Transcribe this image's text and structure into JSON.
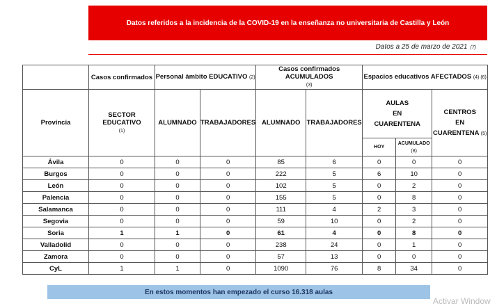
{
  "banner": {
    "title": "Datos referidos a la incidencia de la COVID-19 en la enseñanza no universitaria de Castilla y León"
  },
  "date": {
    "text": "Datos a 25 de marzo de 2021",
    "note": "(7)"
  },
  "table": {
    "group_headers": [
      {
        "label": "Casos confirmados"
      },
      {
        "label": "Personal ámbito EDUCATIVO",
        "note": "(2)"
      },
      {
        "label": "Casos confirmados ACUMULADOS",
        "note": "(3)"
      },
      {
        "label": "Espacios educativos AFECTADOS",
        "note": "(4) (6)"
      }
    ],
    "provincia": "Provincia",
    "sector": {
      "label": "SECTOR EDUCATIVO",
      "note": "(1)"
    },
    "alumnado_1": "ALUMNADO",
    "trabajadores_1": "TRABAJADORES",
    "alumnado_2": "ALUMNADO",
    "trabajadores_2": "TRABAJADORES",
    "aulas": [
      "AULAS",
      "EN",
      "CUARENTENA"
    ],
    "hoy": "HOY",
    "acumulado": {
      "label": "ACUMULADO",
      "note": "(8)"
    },
    "centros": {
      "lines": [
        "CENTROS",
        "EN"
      ],
      "last": "CUARENTENA",
      "note": "(5)"
    },
    "rows": [
      [
        "Ávila",
        0,
        0,
        0,
        85,
        6,
        0,
        0,
        0
      ],
      [
        "Burgos",
        0,
        0,
        0,
        222,
        5,
        6,
        10,
        0
      ],
      [
        "León",
        0,
        0,
        0,
        102,
        5,
        0,
        2,
        0
      ],
      [
        "Palencia",
        0,
        0,
        0,
        155,
        5,
        0,
        8,
        0
      ],
      [
        "Salamanca",
        0,
        0,
        0,
        111,
        4,
        2,
        3,
        0
      ],
      [
        "Segovia",
        0,
        0,
        0,
        59,
        10,
        0,
        2,
        0
      ],
      [
        "Soria",
        1,
        1,
        0,
        61,
        4,
        0,
        8,
        0
      ],
      [
        "Valladolid",
        0,
        0,
        0,
        238,
        24,
        0,
        1,
        0
      ],
      [
        "Zamora",
        0,
        0,
        0,
        57,
        13,
        0,
        0,
        0
      ],
      [
        "CyL",
        1,
        1,
        0,
        1090,
        76,
        8,
        34,
        0
      ]
    ]
  },
  "footer": "En estos momentos han empezado el curso 16.318 aulas",
  "watermark": "Activar Window"
}
